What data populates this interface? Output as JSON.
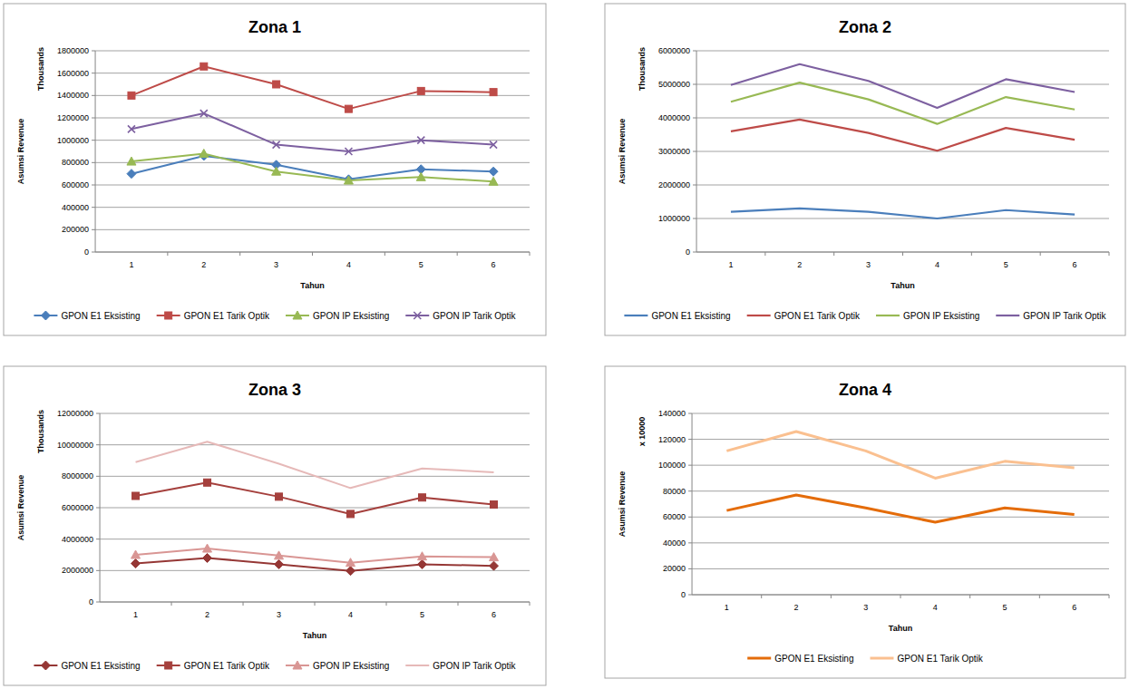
{
  "chart_data": [
    {
      "type": "line",
      "title": "Zona 1",
      "xlabel": "Tahun",
      "ylabel": "Asumsi Revenue",
      "y_unit_label": "Thousands",
      "categories": [
        "1",
        "2",
        "3",
        "4",
        "5",
        "6"
      ],
      "ylim": [
        0,
        1800000
      ],
      "yticks": [
        0,
        200000,
        400000,
        600000,
        800000,
        1000000,
        1200000,
        1400000,
        1600000,
        1800000
      ],
      "grid": true,
      "legend": "bottom",
      "series": [
        {
          "name": "GPON E1 Eksisting",
          "color": "#4a7ebb",
          "marker": "diamond",
          "values": [
            700000,
            860000,
            780000,
            650000,
            740000,
            720000
          ]
        },
        {
          "name": "GPON E1 Tarik Optik",
          "color": "#be4b48",
          "marker": "square",
          "values": [
            1400000,
            1660000,
            1500000,
            1280000,
            1440000,
            1430000
          ]
        },
        {
          "name": "GPON IP Eksisting",
          "color": "#98b954",
          "marker": "triangle",
          "values": [
            810000,
            880000,
            720000,
            640000,
            670000,
            630000
          ]
        },
        {
          "name": "GPON IP Tarik Optik",
          "color": "#7d60a0",
          "marker": "x",
          "values": [
            1100000,
            1240000,
            960000,
            900000,
            1000000,
            960000
          ]
        }
      ]
    },
    {
      "type": "line",
      "title": "Zona 2",
      "xlabel": "Tahun",
      "ylabel": "Asumsi Revenue",
      "y_unit_label": "Thousands",
      "categories": [
        "1",
        "2",
        "3",
        "4",
        "5",
        "6"
      ],
      "ylim": [
        0,
        6000000
      ],
      "yticks": [
        0,
        1000000,
        2000000,
        3000000,
        4000000,
        5000000,
        6000000
      ],
      "grid": true,
      "legend": "bottom",
      "series": [
        {
          "name": "GPON E1 Eksisting",
          "color": "#4a7ebb",
          "marker": "none",
          "values": [
            1200000,
            1300000,
            1200000,
            1000000,
            1250000,
            1120000
          ]
        },
        {
          "name": "GPON E1 Tarik Optik",
          "color": "#be4b48",
          "marker": "none",
          "values": [
            3600000,
            3950000,
            3550000,
            3020000,
            3700000,
            3350000
          ]
        },
        {
          "name": "GPON IP Eksisting",
          "color": "#98b954",
          "marker": "none",
          "values": [
            4480000,
            5050000,
            4550000,
            3820000,
            4620000,
            4250000
          ]
        },
        {
          "name": "GPON IP Tarik Optik",
          "color": "#7d60a0",
          "marker": "none",
          "values": [
            4980000,
            5600000,
            5100000,
            4300000,
            5150000,
            4770000
          ]
        }
      ]
    },
    {
      "type": "line",
      "title": "Zona 3",
      "xlabel": "Tahun",
      "ylabel": "Asumsi Revenue",
      "y_unit_label": "Thousands",
      "categories": [
        "1",
        "2",
        "3",
        "4",
        "5",
        "6"
      ],
      "ylim": [
        0,
        12000000
      ],
      "yticks": [
        0,
        2000000,
        4000000,
        6000000,
        8000000,
        10000000,
        12000000
      ],
      "grid": true,
      "legend": "bottom",
      "series": [
        {
          "name": "GPON E1 Eksisting",
          "color": "#953735",
          "marker": "diamond",
          "values": [
            2450000,
            2800000,
            2400000,
            1980000,
            2400000,
            2300000
          ]
        },
        {
          "name": "GPON E1 Tarik Optik",
          "color": "#a5403d",
          "marker": "square",
          "values": [
            6750000,
            7600000,
            6700000,
            5600000,
            6650000,
            6200000
          ]
        },
        {
          "name": "GPON IP Eksisting",
          "color": "#d99694",
          "marker": "triangle",
          "values": [
            3000000,
            3400000,
            2950000,
            2500000,
            2900000,
            2850000
          ]
        },
        {
          "name": "GPON IP Tarik Optik",
          "color": "#e6b9b8",
          "marker": "none",
          "values": [
            8900000,
            10200000,
            8800000,
            7250000,
            8500000,
            8250000
          ]
        }
      ]
    },
    {
      "type": "line",
      "title": "Zona 4",
      "xlabel": "Tahun",
      "ylabel": "Asumsi Revenue",
      "y_unit_label": "x 10000",
      "categories": [
        "1",
        "2",
        "3",
        "4",
        "5",
        "6"
      ],
      "ylim": [
        0,
        140000
      ],
      "yticks": [
        0,
        20000,
        40000,
        60000,
        80000,
        100000,
        120000,
        140000
      ],
      "grid": true,
      "legend": "bottom",
      "series": [
        {
          "name": "GPON E1 Eksisting",
          "color": "#e46c0a",
          "marker": "none",
          "values": [
            65000,
            77000,
            67000,
            56000,
            67000,
            62000
          ]
        },
        {
          "name": "GPON E1 Tarik Optik",
          "color": "#fac090",
          "marker": "none",
          "values": [
            111000,
            126000,
            111000,
            90000,
            103000,
            98000
          ]
        }
      ]
    }
  ]
}
